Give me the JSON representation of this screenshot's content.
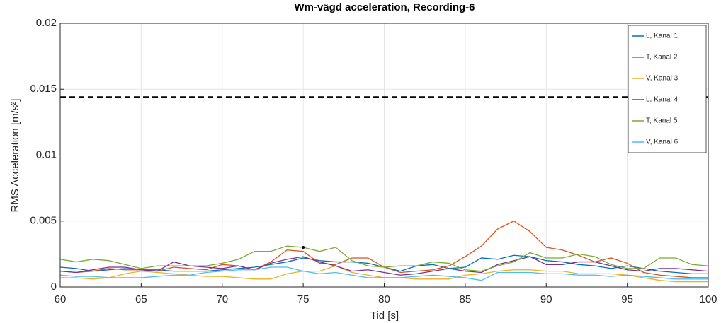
{
  "chart_data": {
    "type": "line",
    "title": "Wm-vägd acceleration, Recording-6",
    "x_label": "Tid [s]",
    "y_label": "RMS Acceleration [m/s²]",
    "x": [
      60,
      61,
      62,
      63,
      64,
      65,
      66,
      67,
      68,
      69,
      70,
      71,
      72,
      73,
      74,
      75,
      76,
      77,
      78,
      79,
      80,
      81,
      82,
      83,
      84,
      85,
      86,
      87,
      88,
      89,
      90,
      91,
      92,
      93,
      94,
      95,
      96,
      97,
      98,
      99,
      100
    ],
    "series": [
      {
        "name": "L, Kanal 1",
        "color": "#0072BD",
        "values": [
          0.0015,
          0.0014,
          0.0012,
          0.0013,
          0.0014,
          0.0013,
          0.0013,
          0.0012,
          0.0012,
          0.0012,
          0.0013,
          0.0014,
          0.0015,
          0.0017,
          0.0019,
          0.0022,
          0.002,
          0.0019,
          0.0019,
          0.0018,
          0.0015,
          0.0012,
          0.0016,
          0.0017,
          0.0014,
          0.0015,
          0.0022,
          0.0021,
          0.0024,
          0.0023,
          0.002,
          0.0019,
          0.0017,
          0.0016,
          0.0014,
          0.0016,
          0.0014,
          0.0012,
          0.0011,
          0.001,
          0.001
        ]
      },
      {
        "name": "T, Kanal 2",
        "color": "#D95319",
        "values": [
          0.0012,
          0.0011,
          0.0012,
          0.0014,
          0.0013,
          0.0013,
          0.0012,
          0.0015,
          0.0014,
          0.0013,
          0.0017,
          0.0016,
          0.0013,
          0.0019,
          0.0028,
          0.0027,
          0.0018,
          0.0017,
          0.0022,
          0.0022,
          0.0015,
          0.0011,
          0.0012,
          0.0013,
          0.0016,
          0.0023,
          0.0031,
          0.0044,
          0.005,
          0.0042,
          0.003,
          0.0028,
          0.0024,
          0.0019,
          0.0022,
          0.0018,
          0.0011,
          0.0009,
          0.0008,
          0.0007,
          0.0007
        ]
      },
      {
        "name": "V, Kanal 3",
        "color": "#EDB120",
        "values": [
          0.0007,
          0.0007,
          0.0006,
          0.0007,
          0.001,
          0.0012,
          0.0011,
          0.001,
          0.0009,
          0.0008,
          0.0008,
          0.0007,
          0.0006,
          0.0006,
          0.001,
          0.0012,
          0.0012,
          0.0016,
          0.0011,
          0.0009,
          0.0007,
          0.0007,
          0.0006,
          0.0006,
          0.0006,
          0.0009,
          0.001,
          0.0012,
          0.0013,
          0.0013,
          0.0012,
          0.0012,
          0.001,
          0.001,
          0.001,
          0.0009,
          0.0007,
          0.0005,
          0.0004,
          0.0004,
          0.0004
        ]
      },
      {
        "name": "L, Kanal 4",
        "color": "#7E2F8E",
        "values": [
          0.0012,
          0.0011,
          0.0013,
          0.0015,
          0.0015,
          0.0013,
          0.0012,
          0.0019,
          0.0016,
          0.0015,
          0.0014,
          0.0016,
          0.0013,
          0.0018,
          0.0021,
          0.0023,
          0.0019,
          0.0016,
          0.0012,
          0.0013,
          0.0011,
          0.0009,
          0.001,
          0.0012,
          0.0014,
          0.0012,
          0.0011,
          0.0017,
          0.002,
          0.0023,
          0.0017,
          0.0017,
          0.0019,
          0.0019,
          0.0016,
          0.0013,
          0.0012,
          0.0014,
          0.0014,
          0.0013,
          0.0012
        ]
      },
      {
        "name": "T, Kanal 5",
        "color": "#77AC30",
        "values": [
          0.0021,
          0.0019,
          0.0021,
          0.002,
          0.0017,
          0.0014,
          0.0016,
          0.0016,
          0.0016,
          0.0016,
          0.0018,
          0.0021,
          0.0027,
          0.0027,
          0.0031,
          0.003,
          0.0027,
          0.003,
          0.002,
          0.0016,
          0.0015,
          0.0016,
          0.0016,
          0.0019,
          0.0018,
          0.0013,
          0.0012,
          0.0016,
          0.0019,
          0.0026,
          0.0022,
          0.0022,
          0.0025,
          0.0023,
          0.0017,
          0.0014,
          0.0014,
          0.0022,
          0.0022,
          0.0017,
          0.0016
        ]
      },
      {
        "name": "V, Kanal 6",
        "color": "#4DBEEE",
        "values": [
          0.0009,
          0.0008,
          0.0008,
          0.0007,
          0.0007,
          0.0007,
          0.0008,
          0.0009,
          0.0009,
          0.0011,
          0.0012,
          0.0013,
          0.0013,
          0.0015,
          0.0015,
          0.0012,
          0.001,
          0.0011,
          0.0009,
          0.0007,
          0.0007,
          0.0007,
          0.0008,
          0.0009,
          0.0008,
          0.0007,
          0.0005,
          0.0011,
          0.0011,
          0.0011,
          0.001,
          0.001,
          0.0009,
          0.0009,
          0.0008,
          0.0009,
          0.0008,
          0.0007,
          0.0006,
          0.0006,
          0.0006
        ]
      }
    ],
    "reference_line": 0.0144,
    "reference_color": "#000000",
    "marker_point": {
      "x": 75,
      "y": 0.003
    },
    "xlim": [
      60,
      100
    ],
    "xticks": [
      60,
      65,
      70,
      75,
      80,
      85,
      90,
      95,
      100
    ],
    "ylim": [
      0,
      0.02
    ],
    "yticks": [
      0,
      0.005,
      0.01,
      0.015,
      0.02
    ],
    "grid": true,
    "legend": "upper right"
  }
}
